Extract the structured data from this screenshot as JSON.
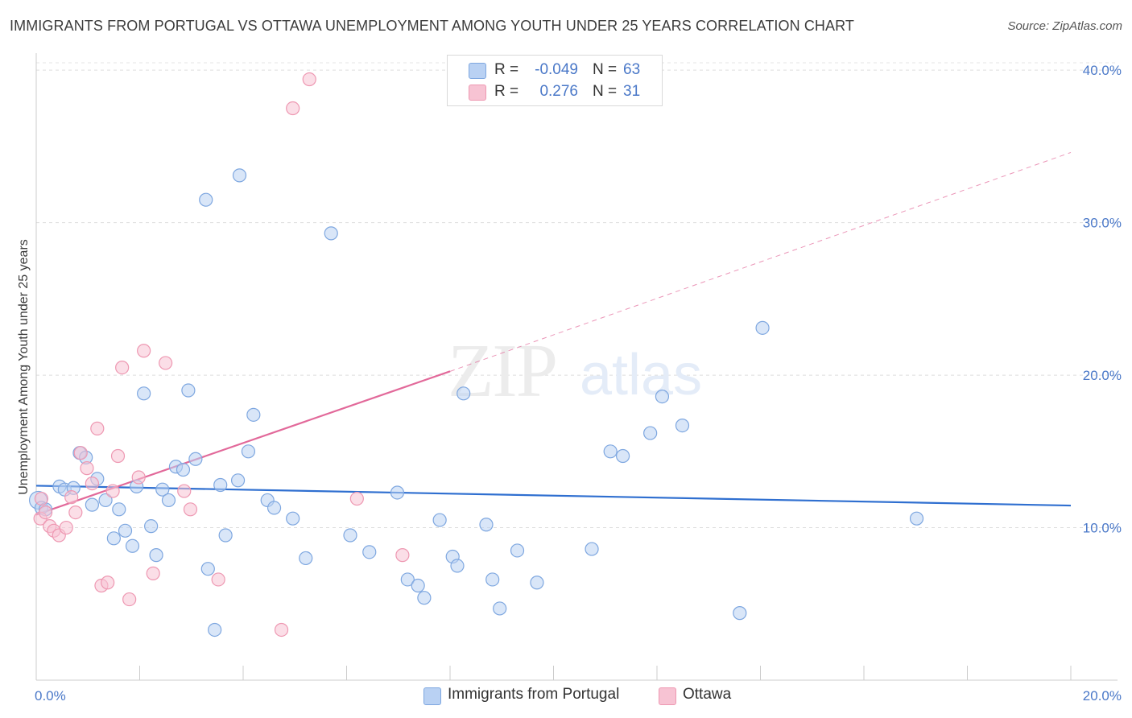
{
  "title": "IMMIGRANTS FROM PORTUGAL VS OTTAWA UNEMPLOYMENT AMONG YOUTH UNDER 25 YEARS CORRELATION CHART",
  "source": "Source: ZipAtlas.com",
  "watermark": {
    "zip": "ZIP",
    "atlas": "atlas"
  },
  "colors": {
    "blue_fill": "#b9d1f3",
    "blue_stroke": "#7ea7e0",
    "blue_line": "#2f6fd0",
    "pink_fill": "#f7c3d3",
    "pink_stroke": "#ee98b2",
    "pink_line": "#e2699a",
    "tick_text": "#4a78c8"
  },
  "legend_top": [
    {
      "r_label": "R =",
      "r_value": "-0.049",
      "n_label": "N =",
      "n_value": "63",
      "series": "blue"
    },
    {
      "r_label": "R =",
      "r_value": "0.276",
      "n_label": "N =",
      "n_value": "31",
      "series": "pink"
    }
  ],
  "legend_bottom": [
    {
      "label": "Immigrants from Portugal",
      "series": "blue"
    },
    {
      "label": "Ottawa",
      "series": "pink"
    }
  ],
  "chart_data": {
    "type": "scatter",
    "title": "IMMIGRANTS FROM PORTUGAL VS OTTAWA UNEMPLOYMENT AMONG YOUTH UNDER 25 YEARS CORRELATION CHART",
    "xlabel": "",
    "ylabel": "Unemployment Among Youth under 25 years",
    "xlim": [
      0,
      20
    ],
    "ylim": [
      0,
      40.8
    ],
    "x_tick_labels": [
      "0.0%",
      "20.0%"
    ],
    "x_tick_label_values": [
      0,
      20
    ],
    "x_tick_marks": [
      0,
      2,
      4,
      6,
      8,
      10,
      12,
      14,
      16,
      18,
      20
    ],
    "y_ticks": [
      10,
      20,
      30,
      40
    ],
    "y_tick_labels": [
      "10.0%",
      "20.0%",
      "30.0%",
      "40.0%"
    ],
    "grid": true,
    "series": [
      {
        "name": "Immigrants from Portugal",
        "color": "blue",
        "points": [
          [
            0.04,
            11.8
          ],
          [
            0.1,
            11.3
          ],
          [
            0.18,
            11.2
          ],
          [
            0.45,
            12.7
          ],
          [
            0.55,
            12.5
          ],
          [
            0.72,
            12.6
          ],
          [
            0.84,
            14.9
          ],
          [
            0.96,
            14.6
          ],
          [
            1.08,
            11.5
          ],
          [
            1.18,
            13.2
          ],
          [
            1.34,
            11.8
          ],
          [
            1.5,
            9.3
          ],
          [
            1.6,
            11.2
          ],
          [
            1.72,
            9.8
          ],
          [
            1.86,
            8.8
          ],
          [
            1.94,
            12.7
          ],
          [
            2.08,
            18.8
          ],
          [
            2.22,
            10.1
          ],
          [
            2.32,
            8.2
          ],
          [
            2.44,
            12.5
          ],
          [
            2.56,
            11.8
          ],
          [
            2.7,
            14.0
          ],
          [
            2.84,
            13.8
          ],
          [
            2.94,
            19.0
          ],
          [
            3.08,
            14.5
          ],
          [
            3.28,
            31.5
          ],
          [
            3.32,
            7.3
          ],
          [
            3.45,
            3.3
          ],
          [
            3.56,
            12.8
          ],
          [
            3.66,
            9.5
          ],
          [
            3.9,
            13.1
          ],
          [
            3.93,
            33.1
          ],
          [
            4.1,
            15.0
          ],
          [
            4.2,
            17.4
          ],
          [
            4.47,
            11.8
          ],
          [
            4.6,
            11.3
          ],
          [
            4.96,
            10.6
          ],
          [
            5.21,
            8.0
          ],
          [
            5.7,
            29.3
          ],
          [
            6.07,
            9.5
          ],
          [
            6.44,
            8.4
          ],
          [
            6.98,
            12.3
          ],
          [
            7.18,
            6.6
          ],
          [
            7.38,
            6.2
          ],
          [
            7.5,
            5.4
          ],
          [
            7.8,
            10.5
          ],
          [
            8.05,
            8.1
          ],
          [
            8.14,
            7.5
          ],
          [
            8.26,
            18.8
          ],
          [
            8.7,
            10.2
          ],
          [
            8.82,
            6.6
          ],
          [
            8.96,
            4.7
          ],
          [
            9.3,
            8.5
          ],
          [
            9.68,
            6.4
          ],
          [
            10.74,
            8.6
          ],
          [
            11.1,
            15.0
          ],
          [
            11.34,
            14.7
          ],
          [
            11.87,
            16.2
          ],
          [
            12.1,
            18.6
          ],
          [
            12.49,
            16.7
          ],
          [
            13.6,
            4.4
          ],
          [
            14.04,
            23.1
          ],
          [
            17.02,
            10.6
          ]
        ],
        "radii": [
          11,
          8,
          8,
          8,
          8,
          8,
          8,
          8,
          8,
          8,
          8,
          8,
          8,
          8,
          8,
          8,
          8,
          8,
          8,
          8,
          8,
          8,
          8,
          8,
          8,
          8,
          8,
          8,
          8,
          8,
          8,
          8,
          8,
          8,
          8,
          8,
          8,
          8,
          8,
          8,
          8,
          8,
          8,
          8,
          8,
          8,
          8,
          8,
          8,
          8,
          8,
          8,
          8,
          8,
          8,
          8,
          8,
          8,
          8,
          8,
          8,
          8,
          8
        ],
        "trend": {
          "x": [
            0,
            20
          ],
          "y": [
            12.75,
            11.45
          ],
          "dashed_extension": false
        }
      },
      {
        "name": "Ottawa",
        "color": "pink",
        "points": [
          [
            0.08,
            10.6
          ],
          [
            0.18,
            11.0
          ],
          [
            0.26,
            10.1
          ],
          [
            0.34,
            9.8
          ],
          [
            0.44,
            9.5
          ],
          [
            0.58,
            10.0
          ],
          [
            0.68,
            12.0
          ],
          [
            0.76,
            11.0
          ],
          [
            0.86,
            14.9
          ],
          [
            0.98,
            13.9
          ],
          [
            1.08,
            12.9
          ],
          [
            1.18,
            16.5
          ],
          [
            1.26,
            6.2
          ],
          [
            1.38,
            6.4
          ],
          [
            1.48,
            12.4
          ],
          [
            1.58,
            14.7
          ],
          [
            1.66,
            20.5
          ],
          [
            1.8,
            5.3
          ],
          [
            1.98,
            13.3
          ],
          [
            2.08,
            21.6
          ],
          [
            2.26,
            7.0
          ],
          [
            2.5,
            20.8
          ],
          [
            2.86,
            12.4
          ],
          [
            2.98,
            11.2
          ],
          [
            3.52,
            6.6
          ],
          [
            4.74,
            3.3
          ],
          [
            4.96,
            37.5
          ],
          [
            5.28,
            39.4
          ],
          [
            6.2,
            11.9
          ],
          [
            7.08,
            8.2
          ],
          [
            0.1,
            11.9
          ]
        ],
        "radii": [
          8,
          8,
          8,
          8,
          8,
          8,
          8,
          8,
          8,
          8,
          8,
          8,
          8,
          8,
          8,
          8,
          8,
          8,
          8,
          8,
          8,
          8,
          8,
          8,
          8,
          8,
          8,
          8,
          8,
          8,
          8
        ],
        "trend": {
          "x": [
            0,
            8
          ],
          "y": [
            10.85,
            20.25
          ],
          "extension_x": [
            8,
            20
          ],
          "extension_y": [
            20.25,
            34.6
          ]
        }
      }
    ]
  }
}
